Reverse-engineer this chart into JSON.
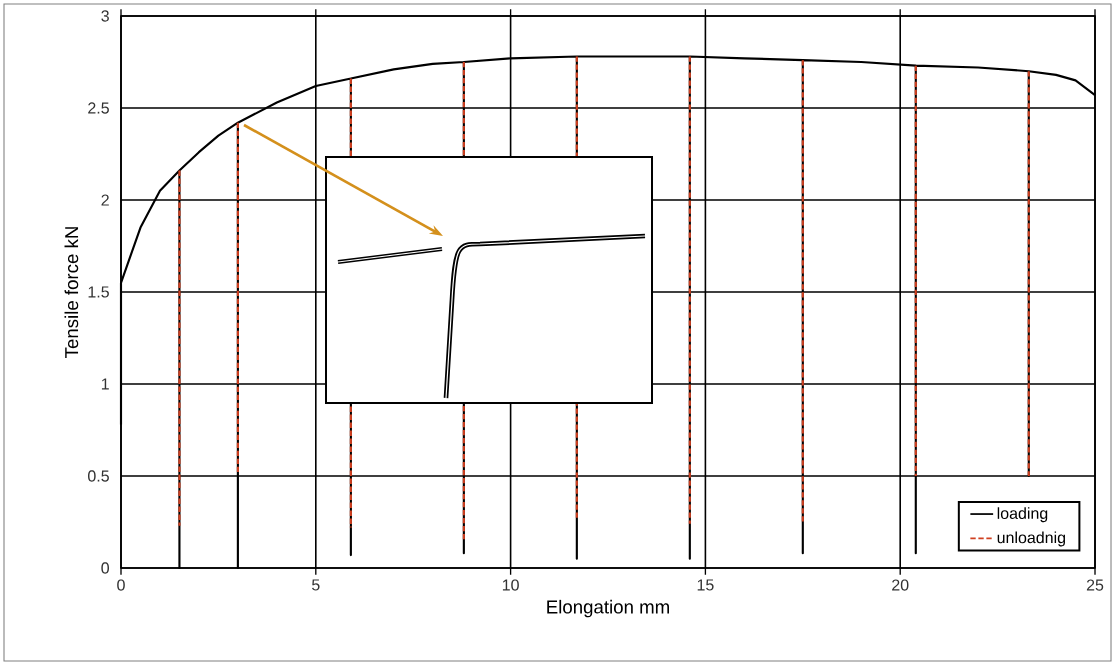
{
  "chart_data": {
    "type": "line",
    "xlabel": "Elongation mm",
    "ylabel": "Tensile force kN",
    "xlim": [
      0,
      25
    ],
    "ylim": [
      0,
      3
    ],
    "xticks": [
      0,
      5,
      10,
      15,
      20,
      25
    ],
    "yticks": [
      0,
      0.5,
      1,
      1.5,
      2,
      2.5,
      3
    ],
    "grid": true,
    "legend": "bottom right",
    "series": [
      {
        "name": "loading",
        "color": "#000000",
        "line_style": "solid",
        "x": [
          0,
          0,
          0.5,
          1,
          1.5,
          1.5,
          1.5,
          2,
          2.5,
          3,
          3,
          3,
          4,
          5,
          5.9,
          5.9,
          5.9,
          7,
          8,
          8.8,
          8.8,
          8.8,
          10,
          11.7,
          11.7,
          11.7,
          13,
          14.6,
          14.6,
          14.6,
          16,
          17.5,
          17.5,
          17.5,
          19,
          20.4,
          20.4,
          20.4,
          22,
          23.3,
          23.3,
          23.3,
          24,
          24.5,
          25
        ],
        "values": [
          0.78,
          1.55,
          1.85,
          2.05,
          2.16,
          0,
          2.16,
          2.26,
          2.35,
          2.42,
          0,
          2.42,
          2.53,
          2.62,
          2.66,
          0.07,
          2.66,
          2.71,
          2.74,
          2.75,
          0.08,
          2.75,
          2.77,
          2.78,
          0.05,
          2.78,
          2.78,
          2.78,
          0.05,
          2.78,
          2.77,
          2.76,
          0.08,
          2.76,
          2.75,
          2.73,
          0.08,
          2.73,
          2.72,
          2.7,
          0.5,
          2.7,
          2.68,
          2.65,
          2.57
        ]
      },
      {
        "name": "unloadnig",
        "color": "#d04020",
        "line_style": "dashed",
        "x": [
          1.5,
          1.5,
          null,
          3,
          3,
          null,
          5.9,
          5.9,
          null,
          8.8,
          8.8,
          null,
          11.7,
          11.7,
          null,
          14.6,
          14.6,
          null,
          17.5,
          17.5,
          null,
          20.4,
          20.4,
          null,
          23.3,
          23.3
        ],
        "values": [
          2.16,
          0.23,
          null,
          2.42,
          0.52,
          null,
          2.66,
          0.22,
          null,
          2.75,
          0.15,
          null,
          2.78,
          0.26,
          null,
          2.78,
          0.24,
          null,
          2.76,
          0.24,
          null,
          2.73,
          0.5,
          null,
          2.7,
          0.5
        ]
      }
    ]
  }
}
